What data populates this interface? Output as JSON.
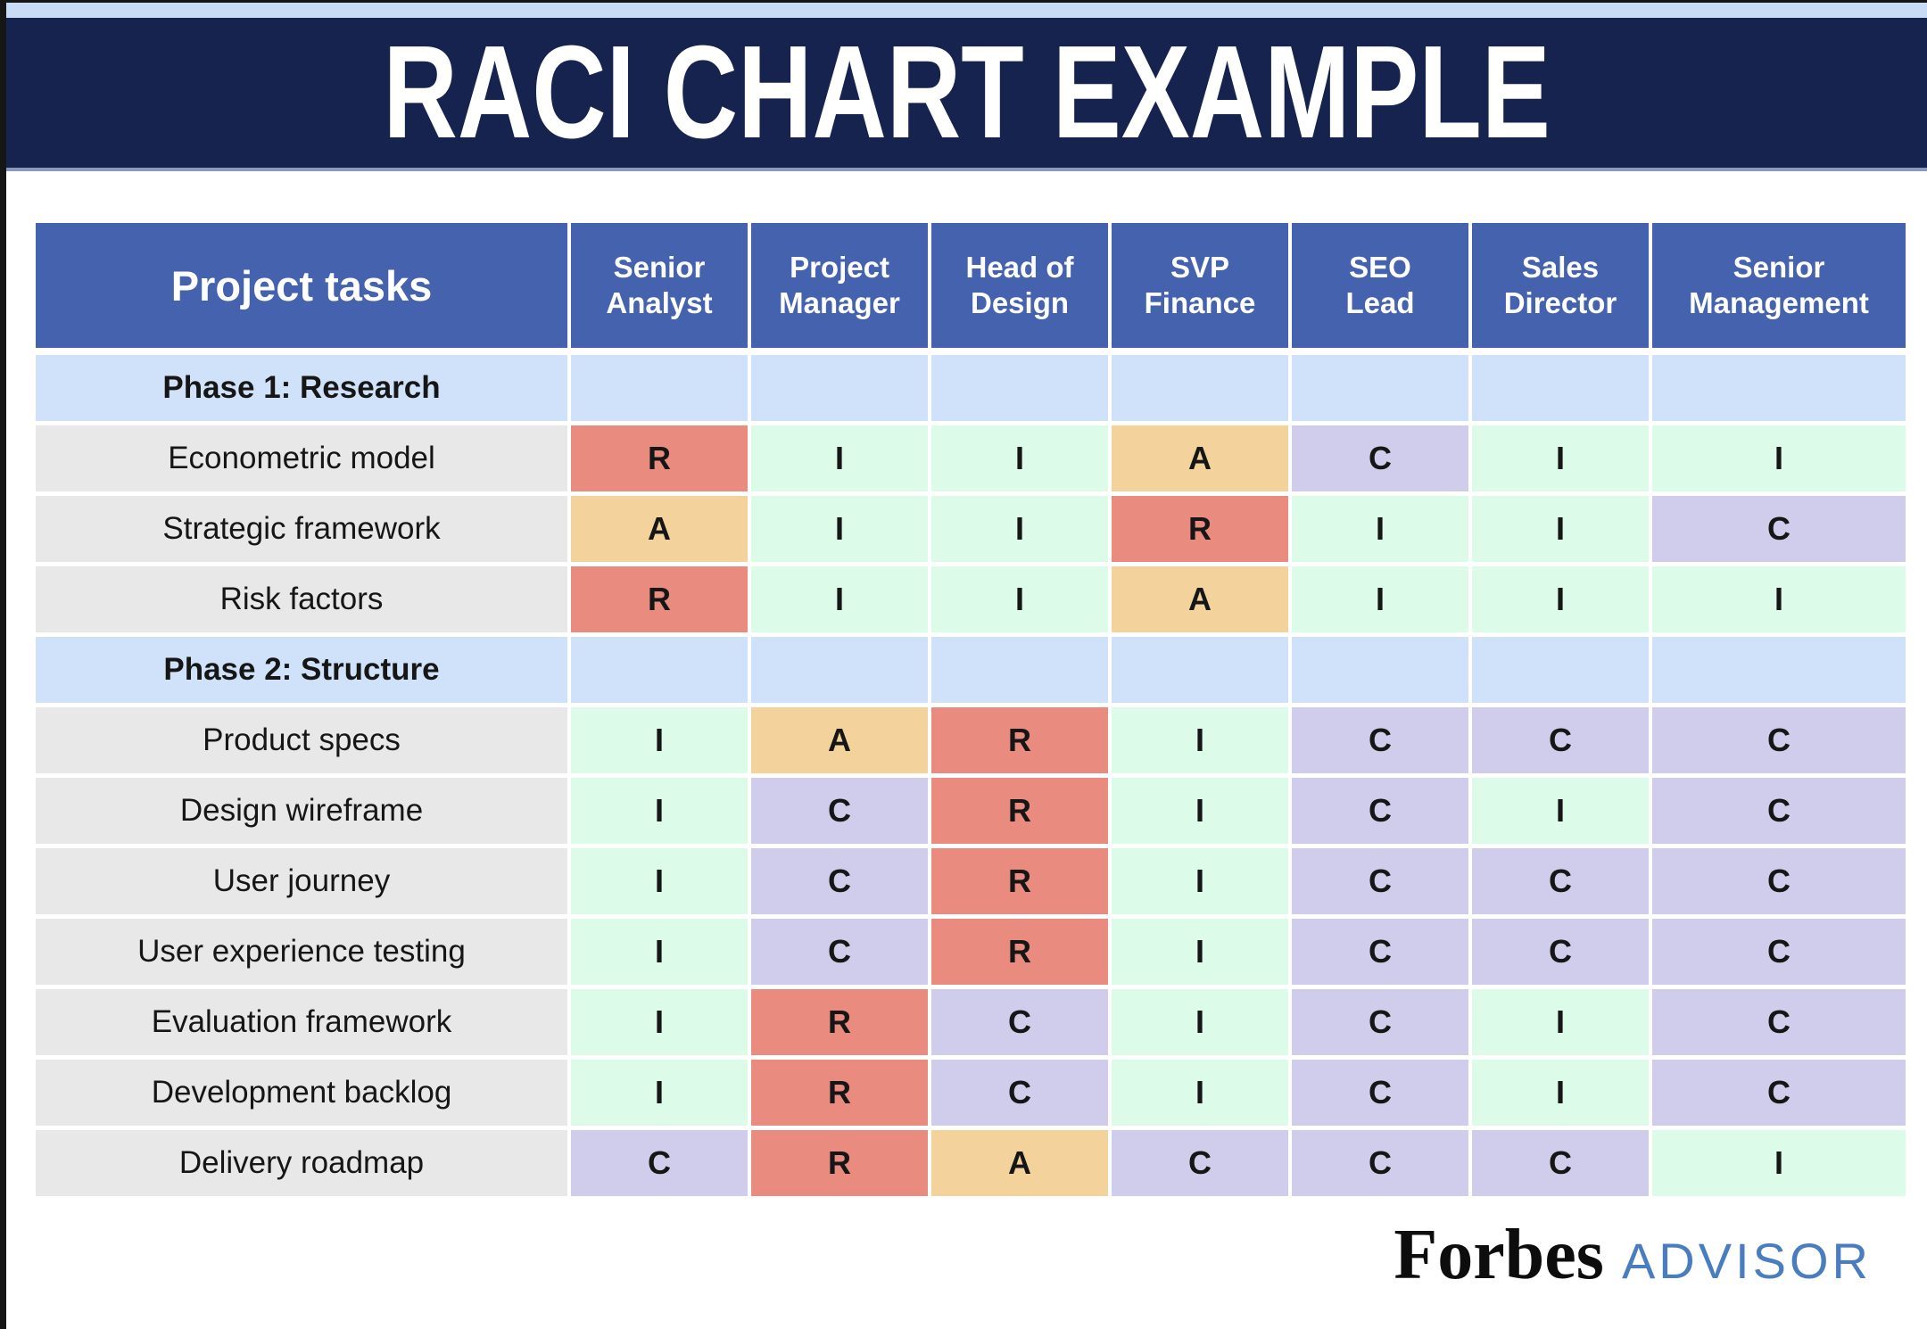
{
  "chart_data": {
    "type": "table",
    "title": "RACI CHART EXAMPLE",
    "task_column_header": "Project tasks",
    "role_columns": [
      "Senior Analyst",
      "Project Manager",
      "Head of Design",
      "SVP Finance",
      "SEO Lead",
      "Sales Director",
      "Senior Management"
    ],
    "rows": [
      {
        "kind": "phase",
        "label": "Phase 1: Research",
        "values": [
          "",
          "",
          "",
          "",
          "",
          "",
          ""
        ]
      },
      {
        "kind": "task",
        "label": "Econometric model",
        "values": [
          "R",
          "I",
          "I",
          "A",
          "C",
          "I",
          "I"
        ]
      },
      {
        "kind": "task",
        "label": "Strategic framework",
        "values": [
          "A",
          "I",
          "I",
          "R",
          "I",
          "I",
          "C"
        ]
      },
      {
        "kind": "task",
        "label": "Risk factors",
        "values": [
          "R",
          "I",
          "I",
          "A",
          "I",
          "I",
          "I"
        ]
      },
      {
        "kind": "phase",
        "label": "Phase 2: Structure",
        "values": [
          "",
          "",
          "",
          "",
          "",
          "",
          ""
        ]
      },
      {
        "kind": "task",
        "label": "Product specs",
        "values": [
          "I",
          "A",
          "R",
          "I",
          "C",
          "C",
          "C"
        ]
      },
      {
        "kind": "task",
        "label": "Design wireframe",
        "values": [
          "I",
          "C",
          "R",
          "I",
          "C",
          "I",
          "C"
        ]
      },
      {
        "kind": "task",
        "label": "User journey",
        "values": [
          "I",
          "C",
          "R",
          "I",
          "C",
          "C",
          "C"
        ]
      },
      {
        "kind": "task",
        "label": "User experience testing",
        "values": [
          "I",
          "C",
          "R",
          "I",
          "C",
          "C",
          "C"
        ]
      },
      {
        "kind": "task",
        "label": "Evaluation framework",
        "values": [
          "I",
          "R",
          "C",
          "I",
          "C",
          "I",
          "C"
        ]
      },
      {
        "kind": "task",
        "label": "Development backlog",
        "values": [
          "I",
          "R",
          "C",
          "I",
          "C",
          "I",
          "C"
        ]
      },
      {
        "kind": "task",
        "label": "Delivery roadmap",
        "values": [
          "C",
          "R",
          "A",
          "C",
          "C",
          "C",
          "I"
        ]
      }
    ]
  },
  "legend_colors": {
    "R": "#e98b7f",
    "A": "#f4d29c",
    "C": "#cfcdeb",
    "I": "#dcfbe9"
  },
  "colors": {
    "banner_navy": "#16234f",
    "header_blue": "#4462ae",
    "phase_blue": "#cfe2f9",
    "task_gray": "#e9e8e8",
    "top_strip": "#c8dcf6",
    "advisor_blue": "#4a7dc0"
  },
  "footer": {
    "brand": "Forbes",
    "suffix": "ADVISOR"
  }
}
